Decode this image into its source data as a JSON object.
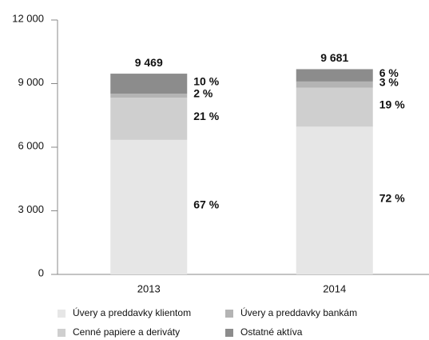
{
  "chart_data": {
    "type": "stacked_bar",
    "categories": [
      "2013",
      "2014"
    ],
    "series": [
      {
        "name": "Úvery a preddavky klientom",
        "color": "#e6e6e6",
        "values": [
          6344,
          6970
        ],
        "value_labels": [
          "67 %",
          "72 %"
        ]
      },
      {
        "name": "Cenné papiere a deriváty",
        "color": "#cfcfcf",
        "values": [
          1988,
          1839
        ],
        "value_labels": [
          "21 %",
          "19 %"
        ]
      },
      {
        "name": "Úvery a preddavky bankám",
        "color": "#b4b4b4",
        "values": [
          190,
          290
        ],
        "value_labels": [
          "2 %",
          "3 %"
        ]
      },
      {
        "name": "Ostatné aktíva",
        "color": "#8c8c8c",
        "values": [
          947,
          582
        ],
        "value_labels": [
          "10 %",
          "6 %"
        ]
      }
    ],
    "totals": [
      9469,
      9681
    ],
    "total_labels": [
      "9 469",
      "9 681"
    ],
    "ylim": [
      0,
      12000
    ],
    "yticks": [
      0,
      {
        "value": 3000,
        "label": "3 000"
      },
      {
        "value": 6000,
        "label": "6 000"
      },
      {
        "value": 9000,
        "label": "9 000"
      },
      {
        "value": 12000,
        "label": "12 000"
      }
    ],
    "grid": false
  }
}
